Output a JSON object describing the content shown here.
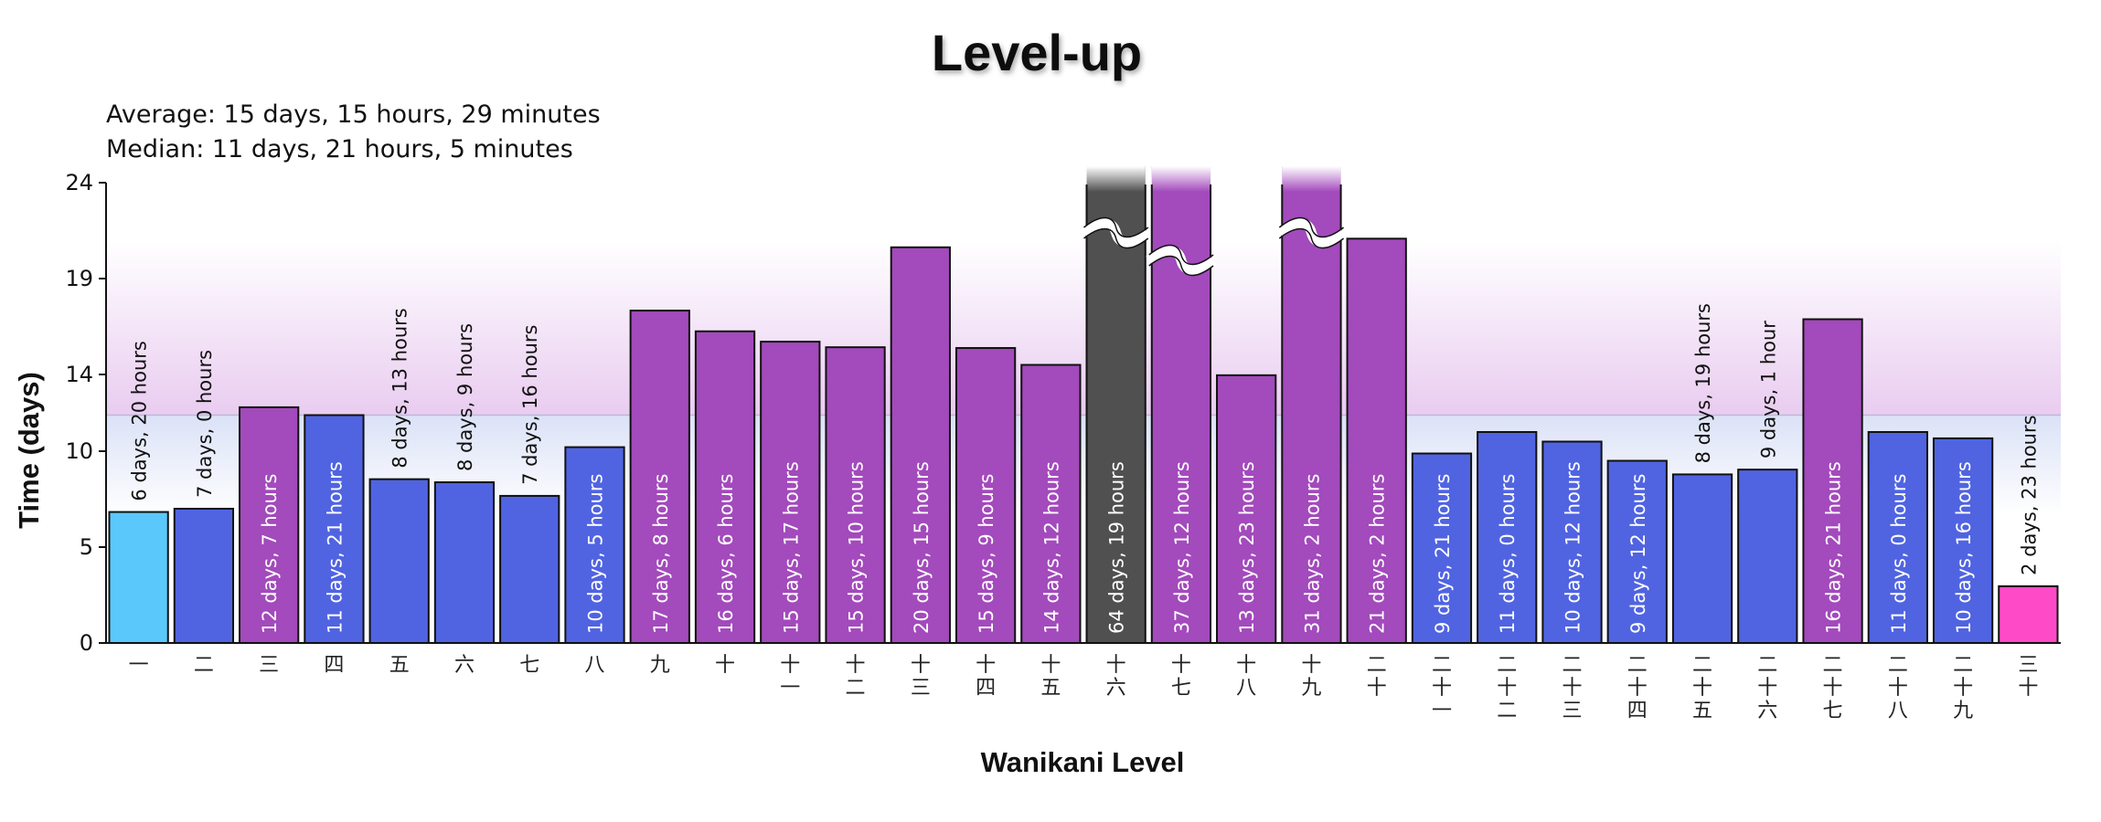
{
  "chart_data": {
    "type": "bar",
    "title": "Level-up",
    "stats": {
      "average": "Average: 15 days, 15 hours, 29 minutes",
      "median": "Median: 11 days, 21 hours, 5 minutes"
    },
    "xlabel": "Wanikani Level",
    "ylabel": "Time (days)",
    "ylim": [
      0,
      24
    ],
    "yticks": [
      0,
      5,
      10,
      14,
      19,
      24
    ],
    "average_days": 15.65,
    "median_days": 11.88,
    "colors": {
      "fast": "#5bc8fb",
      "normal": "#5064e1",
      "slow": "#a34abc",
      "outlier": "#505050",
      "current": "#ff4ac7",
      "band_purple": "#e9ccf0",
      "band_blue": "#dbe2f7"
    },
    "bars": [
      {
        "level": "一",
        "days": 6.83,
        "label": "6 days, 20 hours",
        "kind": "fast"
      },
      {
        "level": "二",
        "days": 7.0,
        "label": "7 days, 0 hours",
        "kind": "normal"
      },
      {
        "level": "三",
        "days": 12.29,
        "label": "12 days, 7 hours",
        "kind": "slow"
      },
      {
        "level": "四",
        "days": 11.88,
        "label": "11 days, 21 hours",
        "kind": "normal"
      },
      {
        "level": "五",
        "days": 8.54,
        "label": "8 days, 13 hours",
        "kind": "normal"
      },
      {
        "level": "六",
        "days": 8.38,
        "label": "8 days, 9 hours",
        "kind": "normal"
      },
      {
        "level": "七",
        "days": 7.67,
        "label": "7 days, 16 hours",
        "kind": "normal"
      },
      {
        "level": "八",
        "days": 10.21,
        "label": "10 days, 5 hours",
        "kind": "normal"
      },
      {
        "level": "九",
        "days": 17.33,
        "label": "17 days, 8 hours",
        "kind": "slow"
      },
      {
        "level": "十",
        "days": 16.25,
        "label": "16 days, 6 hours",
        "kind": "slow"
      },
      {
        "level": "十一",
        "days": 15.71,
        "label": "15 days, 17 hours",
        "kind": "slow"
      },
      {
        "level": "十二",
        "days": 15.42,
        "label": "15 days, 10 hours",
        "kind": "slow"
      },
      {
        "level": "十三",
        "days": 20.63,
        "label": "20 days, 15 hours",
        "kind": "slow"
      },
      {
        "level": "十四",
        "days": 15.38,
        "label": "15 days, 9 hours",
        "kind": "slow"
      },
      {
        "level": "十五",
        "days": 14.5,
        "label": "14 days, 12 hours",
        "kind": "slow"
      },
      {
        "level": "十六",
        "days": 64.79,
        "label": "64 days, 19 hours",
        "kind": "outlier",
        "broken": true
      },
      {
        "level": "十七",
        "days": 37.5,
        "label": "37 days, 12 hours",
        "kind": "slow",
        "broken": true
      },
      {
        "level": "十八",
        "days": 13.96,
        "label": "13 days, 23 hours",
        "kind": "slow"
      },
      {
        "level": "十九",
        "days": 31.08,
        "label": "31 days, 2 hours",
        "kind": "slow",
        "broken": true
      },
      {
        "level": "二十",
        "days": 21.08,
        "label": "21 days, 2 hours",
        "kind": "slow"
      },
      {
        "level": "二十一",
        "days": 9.88,
        "label": "9 days, 21 hours",
        "kind": "normal"
      },
      {
        "level": "二十二",
        "days": 11.0,
        "label": "11 days, 0 hours",
        "kind": "normal"
      },
      {
        "level": "二十三",
        "days": 10.5,
        "label": "10 days, 12 hours",
        "kind": "normal"
      },
      {
        "level": "二十四",
        "days": 9.5,
        "label": "9 days, 12 hours",
        "kind": "normal"
      },
      {
        "level": "二十五",
        "days": 8.79,
        "label": "8 days, 19 hours",
        "kind": "normal"
      },
      {
        "level": "二十六",
        "days": 9.04,
        "label": "9 days, 1 hour",
        "kind": "normal"
      },
      {
        "level": "二十七",
        "days": 16.88,
        "label": "16 days, 21 hours",
        "kind": "slow"
      },
      {
        "level": "二十八",
        "days": 11.0,
        "label": "11 days, 0 hours",
        "kind": "normal"
      },
      {
        "level": "二十九",
        "days": 10.67,
        "label": "10 days, 16 hours",
        "kind": "normal"
      },
      {
        "level": "三十",
        "days": 2.96,
        "label": "2 days, 23 hours",
        "kind": "current"
      }
    ]
  }
}
